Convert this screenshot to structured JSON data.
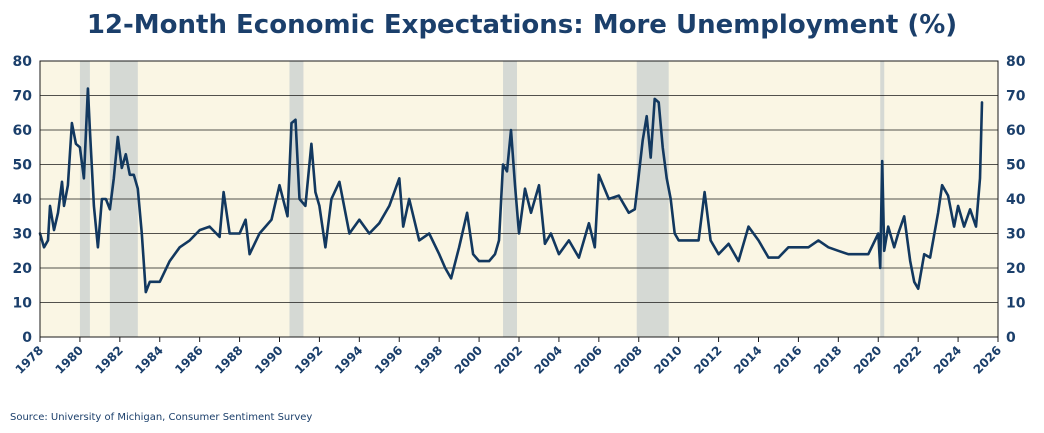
{
  "page": {
    "title": "12-Month Economic Expectations: More Unemployment (%)",
    "source": "Source: University of Michigan, Consumer Sentiment Survey"
  },
  "colors": {
    "plot_background": "#faf6e4",
    "recession_shading": "#d5d9d4",
    "line": "#12385f",
    "text": "#1b3f6b",
    "grid": "#1a1a1a"
  },
  "chart_data": {
    "type": "line",
    "title": "12-Month Economic Expectations: More Unemployment (%)",
    "xlabel": "",
    "ylabel": "",
    "xlim": [
      1978,
      2026
    ],
    "ylim": [
      0,
      80
    ],
    "y_ticks": [
      0,
      10,
      20,
      30,
      40,
      50,
      60,
      70,
      80
    ],
    "x_ticks": [
      1978,
      1980,
      1982,
      1984,
      1986,
      1988,
      1990,
      1992,
      1994,
      1996,
      1998,
      2000,
      2002,
      2004,
      2006,
      2008,
      2010,
      2012,
      2014,
      2016,
      2018,
      2020,
      2022,
      2024,
      2026
    ],
    "y_axis_right_mirror": true,
    "grid": "horizontal",
    "legend": "none",
    "recessions": [
      [
        1980.0,
        1980.5
      ],
      [
        1981.5,
        1982.9
      ],
      [
        1990.5,
        1991.2
      ],
      [
        2001.2,
        2001.9
      ],
      [
        2007.9,
        2009.5
      ],
      [
        2020.1,
        2020.3
      ]
    ],
    "series": [
      {
        "x": [
          1978.0,
          1978.2,
          1978.4,
          1978.5,
          1978.7,
          1978.9,
          1979.1,
          1979.2,
          1979.4,
          1979.6,
          1979.8,
          1980.0,
          1980.2,
          1980.4,
          1980.5,
          1980.7,
          1980.9,
          1981.1,
          1981.3,
          1981.5,
          1981.7,
          1981.9,
          1982.1,
          1982.3,
          1982.5,
          1982.7,
          1982.9,
          1983.1,
          1983.3,
          1983.5,
          1983.8,
          1984.0,
          1984.5,
          1985.0,
          1985.5,
          1986.0,
          1986.5,
          1987.0,
          1987.2,
          1987.5,
          1988.0,
          1988.3,
          1988.5,
          1989.0,
          1989.3,
          1989.6,
          1990.0,
          1990.4,
          1990.6,
          1990.8,
          1991.0,
          1991.3,
          1991.6,
          1991.8,
          1992.0,
          1992.3,
          1992.6,
          1993.0,
          1993.5,
          1994.0,
          1994.5,
          1995.0,
          1995.5,
          1996.0,
          1996.2,
          1996.5,
          1997.0,
          1997.5,
          1998.0,
          1998.3,
          1998.6,
          1999.0,
          1999.4,
          1999.7,
          2000.0,
          2000.5,
          2000.8,
          2001.0,
          2001.2,
          2001.4,
          2001.6,
          2001.8,
          2002.0,
          2002.3,
          2002.6,
          2003.0,
          2003.3,
          2003.6,
          2004.0,
          2004.5,
          2005.0,
          2005.5,
          2005.8,
          2006.0,
          2006.5,
          2007.0,
          2007.5,
          2007.8,
          2008.0,
          2008.2,
          2008.4,
          2008.6,
          2008.8,
          2009.0,
          2009.2,
          2009.4,
          2009.6,
          2009.8,
          2010.0,
          2010.5,
          2011.0,
          2011.3,
          2011.6,
          2012.0,
          2012.5,
          2013.0,
          2013.5,
          2014.0,
          2014.5,
          2015.0,
          2015.5,
          2016.0,
          2016.5,
          2017.0,
          2017.5,
          2018.0,
          2018.5,
          2019.0,
          2019.5,
          2020.0,
          2020.1,
          2020.2,
          2020.3,
          2020.5,
          2020.8,
          2021.0,
          2021.3,
          2021.6,
          2021.8,
          2022.0,
          2022.3,
          2022.6,
          2023.0,
          2023.2,
          2023.5,
          2023.8,
          2024.0,
          2024.3,
          2024.6,
          2024.9,
          2025.1,
          2025.2
        ],
        "y": [
          30,
          26,
          28,
          38,
          31,
          36,
          45,
          38,
          44,
          62,
          56,
          55,
          46,
          72,
          60,
          38,
          26,
          40,
          40,
          37,
          46,
          58,
          49,
          53,
          47,
          47,
          43,
          30,
          13,
          16,
          16,
          16,
          22,
          26,
          28,
          31,
          32,
          29,
          42,
          30,
          30,
          34,
          24,
          30,
          32,
          34,
          44,
          35,
          62,
          63,
          40,
          38,
          56,
          42,
          38,
          26,
          40,
          45,
          30,
          34,
          30,
          33,
          38,
          46,
          32,
          40,
          28,
          30,
          24,
          20,
          17,
          26,
          36,
          24,
          22,
          22,
          24,
          28,
          50,
          48,
          60,
          44,
          30,
          43,
          36,
          44,
          27,
          30,
          24,
          28,
          23,
          33,
          26,
          47,
          40,
          41,
          36,
          37,
          47,
          57,
          64,
          52,
          69,
          68,
          55,
          46,
          40,
          30,
          28,
          28,
          28,
          42,
          28,
          24,
          27,
          22,
          32,
          28,
          23,
          23,
          26,
          26,
          26,
          28,
          26,
          25,
          24,
          24,
          24,
          30,
          20,
          51,
          25,
          32,
          26,
          30,
          35,
          22,
          16,
          14,
          24,
          23,
          36,
          44,
          41,
          32,
          38,
          32,
          37,
          32,
          46,
          68
        ]
      }
    ]
  }
}
